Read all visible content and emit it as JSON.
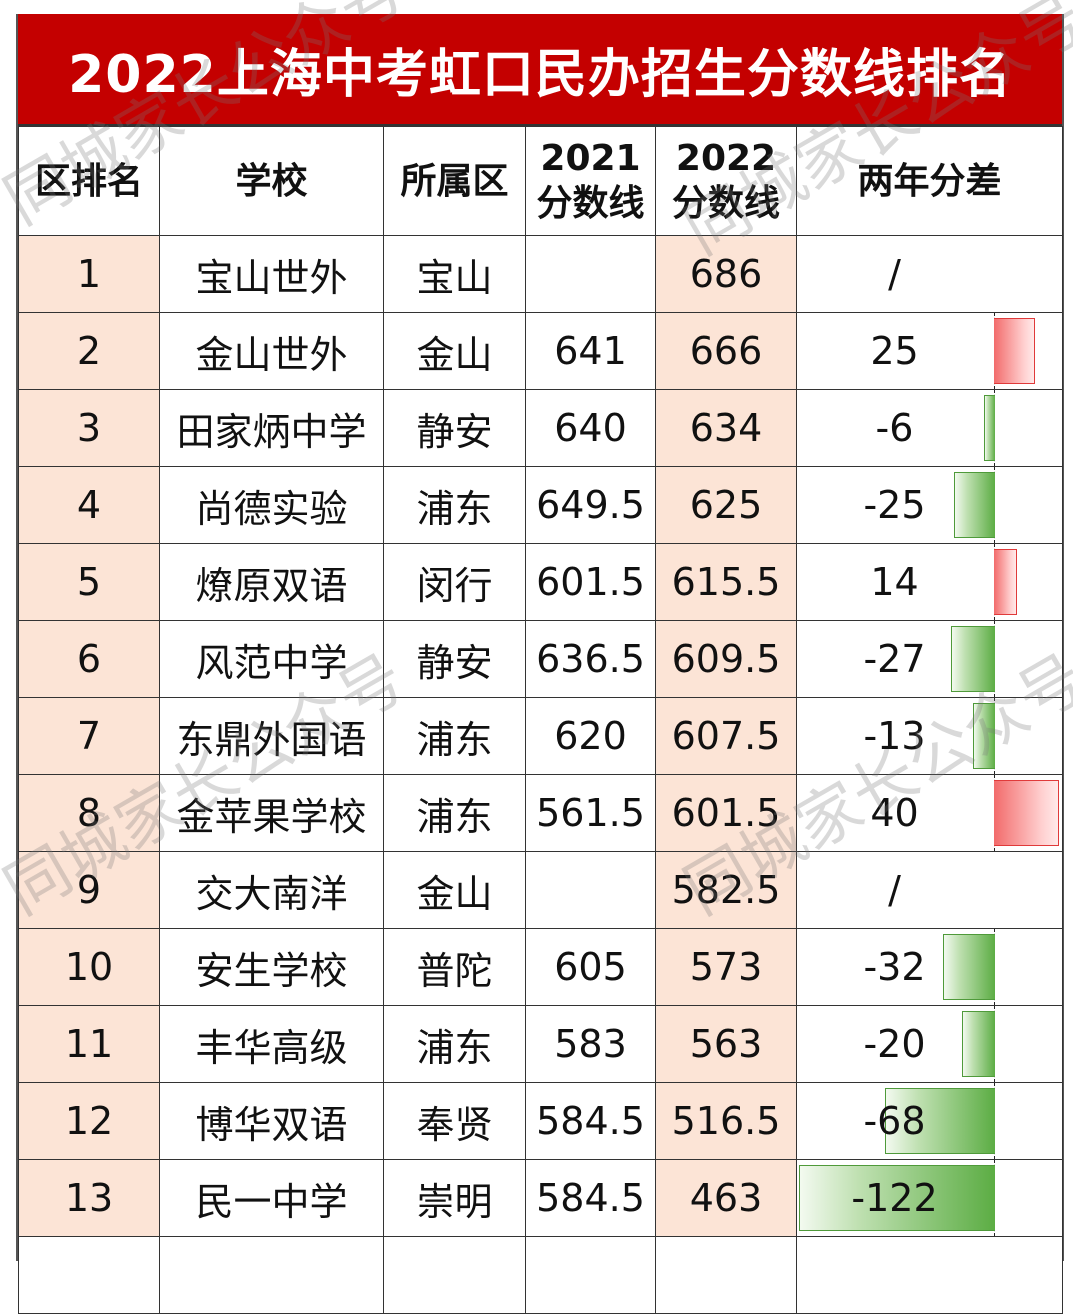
{
  "title": "2022上海中考虹口民办招生分数线排名",
  "headers": {
    "rank": "区排名",
    "school": "学校",
    "district": "所属区",
    "score2021_year": "2021",
    "score2021_label": "分数线",
    "score2022_year": "2022",
    "score2022_label": "分数线",
    "diff": "两年分差"
  },
  "rows": [
    {
      "rank": "1",
      "school": "宝山世外",
      "district": "宝山",
      "score2021": "",
      "score2022": "686",
      "diff": "/",
      "diff_value": null
    },
    {
      "rank": "2",
      "school": "金山世外",
      "district": "金山",
      "score2021": "641",
      "score2022": "666",
      "diff": "25",
      "diff_value": 25
    },
    {
      "rank": "3",
      "school": "田家炳中学",
      "district": "静安",
      "score2021": "640",
      "score2022": "634",
      "diff": "-6",
      "diff_value": -6
    },
    {
      "rank": "4",
      "school": "尚德实验",
      "district": "浦东",
      "score2021": "649.5",
      "score2022": "625",
      "diff": "-25",
      "diff_value": -25
    },
    {
      "rank": "5",
      "school": "燎原双语",
      "district": "闵行",
      "score2021": "601.5",
      "score2022": "615.5",
      "diff": "14",
      "diff_value": 14
    },
    {
      "rank": "6",
      "school": "风范中学",
      "district": "静安",
      "score2021": "636.5",
      "score2022": "609.5",
      "diff": "-27",
      "diff_value": -27
    },
    {
      "rank": "7",
      "school": "东鼎外国语",
      "district": "浦东",
      "score2021": "620",
      "score2022": "607.5",
      "diff": "-13",
      "diff_value": -13
    },
    {
      "rank": "8",
      "school": "金苹果学校",
      "district": "浦东",
      "score2021": "561.5",
      "score2022": "601.5",
      "diff": "40",
      "diff_value": 40
    },
    {
      "rank": "9",
      "school": "交大南洋",
      "district": "金山",
      "score2021": "",
      "score2022": "582.5",
      "diff": "/",
      "diff_value": null
    },
    {
      "rank": "10",
      "school": "安生学校",
      "district": "普陀",
      "score2021": "605",
      "score2022": "573",
      "diff": "-32",
      "diff_value": -32
    },
    {
      "rank": "11",
      "school": "丰华高级",
      "district": "浦东",
      "score2021": "583",
      "score2022": "563",
      "diff": "-20",
      "diff_value": -20
    },
    {
      "rank": "12",
      "school": "博华双语",
      "district": "奉贤",
      "score2021": "584.5",
      "score2022": "516.5",
      "diff": "-68",
      "diff_value": -68
    },
    {
      "rank": "13",
      "school": "民一中学",
      "district": "崇明",
      "score2021": "584.5",
      "score2022": "463",
      "diff": "-122",
      "diff_value": -122
    }
  ],
  "colors": {
    "title_bg": "#c40000",
    "rank_col_bg": "#fce4d6",
    "positive_bar": "#f26b6b",
    "negative_bar": "#5cad44"
  },
  "watermark": "同城家长公众号"
}
